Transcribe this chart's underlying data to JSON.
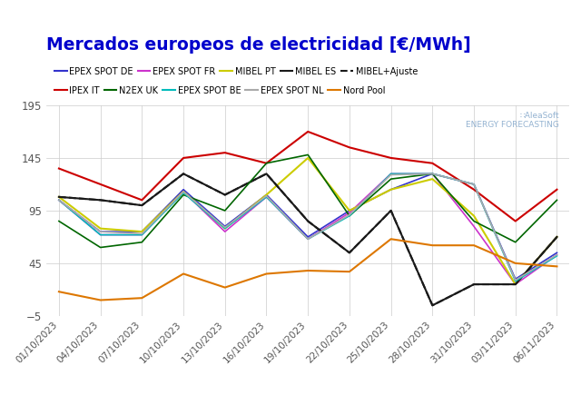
{
  "title": "Mercados europeos de electricidad [€/MWh]",
  "title_color": "#0000cc",
  "background_color": "#ffffff",
  "ylim": [
    -5,
    195
  ],
  "yticks": [
    -5,
    45,
    95,
    145,
    195
  ],
  "x_labels": [
    "01/10/2023",
    "04/10/2023",
    "07/10/2023",
    "10/10/2023",
    "13/10/2023",
    "16/10/2023",
    "19/10/2023",
    "22/10/2023",
    "25/10/2023",
    "28/10/2023",
    "31/10/2023",
    "03/11/2023",
    "06/11/2023"
  ],
  "series": {
    "EPEX SPOT DE": {
      "color": "#3333cc",
      "linestyle": "-",
      "linewidth": 1.2,
      "values": [
        105,
        75,
        75,
        115,
        80,
        110,
        70,
        95,
        115,
        130,
        120,
        30,
        55
      ]
    },
    "EPEX SPOT FR": {
      "color": "#cc33cc",
      "linestyle": "-",
      "linewidth": 1.2,
      "values": [
        105,
        72,
        72,
        113,
        75,
        108,
        68,
        93,
        130,
        130,
        80,
        25,
        53
      ]
    },
    "MIBEL PT": {
      "color": "#cccc00",
      "linestyle": "-",
      "linewidth": 1.5,
      "values": [
        108,
        78,
        75,
        113,
        78,
        110,
        145,
        95,
        115,
        125,
        90,
        25,
        70
      ]
    },
    "MIBEL ES": {
      "color": "#1a1a1a",
      "linestyle": "-",
      "linewidth": 1.5,
      "values": [
        108,
        105,
        100,
        130,
        110,
        130,
        85,
        55,
        95,
        5,
        25,
        25,
        70
      ]
    },
    "MIBEL+Ajuste": {
      "color": "#1a1a1a",
      "linestyle": "--",
      "linewidth": 1.5,
      "values": [
        108,
        105,
        100,
        130,
        110,
        130,
        85,
        55,
        95,
        5,
        25,
        25,
        70
      ]
    },
    "IPEX IT": {
      "color": "#cc0000",
      "linestyle": "-",
      "linewidth": 1.5,
      "values": [
        135,
        120,
        105,
        145,
        150,
        140,
        170,
        155,
        145,
        140,
        115,
        85,
        115
      ]
    },
    "N2EX UK": {
      "color": "#006600",
      "linestyle": "-",
      "linewidth": 1.2,
      "values": [
        85,
        60,
        65,
        110,
        95,
        140,
        148,
        90,
        125,
        130,
        85,
        65,
        105
      ]
    },
    "EPEX SPOT BE": {
      "color": "#00bbbb",
      "linestyle": "-",
      "linewidth": 1.2,
      "values": [
        105,
        72,
        72,
        112,
        78,
        108,
        68,
        90,
        130,
        130,
        120,
        28,
        52
      ]
    },
    "EPEX SPOT NL": {
      "color": "#aaaaaa",
      "linestyle": "-",
      "linewidth": 1.2,
      "values": [
        105,
        75,
        73,
        113,
        79,
        109,
        68,
        91,
        129,
        130,
        120,
        29,
        53
      ]
    },
    "Nord Pool": {
      "color": "#dd7700",
      "linestyle": "-",
      "linewidth": 1.5,
      "values": [
        18,
        10,
        12,
        35,
        22,
        35,
        38,
        37,
        68,
        62,
        62,
        45,
        42
      ]
    }
  },
  "legend_row1": [
    "EPEX SPOT DE",
    "EPEX SPOT FR",
    "MIBEL PT",
    "MIBEL ES",
    "MIBEL+Ajuste"
  ],
  "legend_row2": [
    "IPEX IT",
    "N2EX UK",
    "EPEX SPOT BE",
    "EPEX SPOT NL",
    "Nord Pool"
  ]
}
